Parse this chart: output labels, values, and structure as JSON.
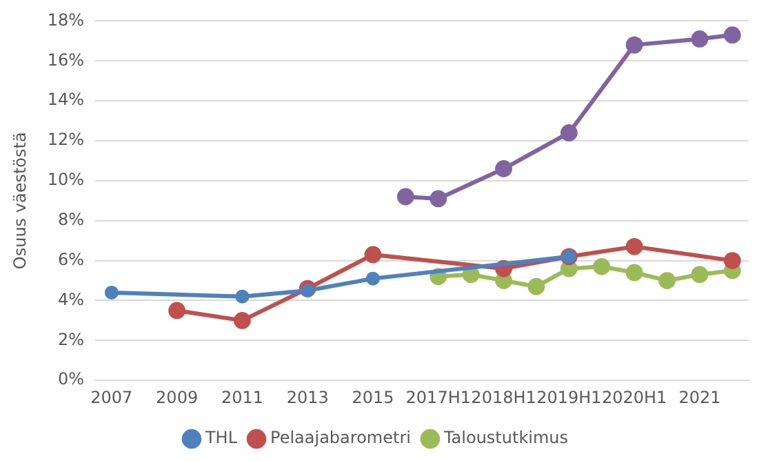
{
  "chart_data": {
    "type": "line",
    "ylabel": "Osuus väestöstä",
    "categories": [
      "2007",
      null,
      "2009",
      null,
      "2011",
      null,
      "2013",
      null,
      "2015",
      null,
      "2017H1",
      null,
      "2018H1",
      null,
      "2019H1",
      null,
      "2020H1",
      null,
      "2021",
      null
    ],
    "series": [
      {
        "name": "THL",
        "color": "#4f81bd",
        "values": [
          4.4,
          null,
          null,
          null,
          4.2,
          null,
          4.5,
          null,
          5.1,
          null,
          null,
          null,
          null,
          null,
          6.2,
          null,
          null,
          null,
          null,
          null
        ]
      },
      {
        "name": "Pelaajabarometri",
        "color": "#c0504d",
        "values": [
          null,
          null,
          3.5,
          null,
          3.0,
          null,
          4.6,
          null,
          6.3,
          null,
          null,
          null,
          5.6,
          null,
          6.2,
          null,
          6.7,
          null,
          null,
          6.0
        ]
      },
      {
        "name": "Taloustutkimus",
        "color": "#9bbb59",
        "values": [
          null,
          null,
          null,
          null,
          null,
          null,
          null,
          null,
          null,
          null,
          5.2,
          5.3,
          5.0,
          4.7,
          5.6,
          5.7,
          5.4,
          5.0,
          5.3,
          5.5
        ]
      },
      {
        "color": "#8064a2",
        "values": [
          null,
          null,
          null,
          null,
          null,
          null,
          null,
          null,
          null,
          9.2,
          9.1,
          null,
          10.6,
          null,
          12.4,
          null,
          16.8,
          null,
          17.1,
          17.3
        ]
      }
    ],
    "ylim": [
      0,
      18
    ],
    "yticks": [
      {
        "value": 0,
        "label": "0%"
      },
      {
        "value": 2,
        "label": "2%"
      },
      {
        "value": 4,
        "label": "4%"
      },
      {
        "value": 6,
        "label": "6%"
      },
      {
        "value": 8,
        "label": "8%"
      },
      {
        "value": 10,
        "label": "10%"
      },
      {
        "value": 12,
        "label": "12%"
      },
      {
        "value": 14,
        "label": "14%"
      },
      {
        "value": 16,
        "label": "16%"
      },
      {
        "value": 18,
        "label": "18%"
      }
    ],
    "grid": "y",
    "legend": "bottom",
    "marker": "circle",
    "line_style": "solid"
  }
}
